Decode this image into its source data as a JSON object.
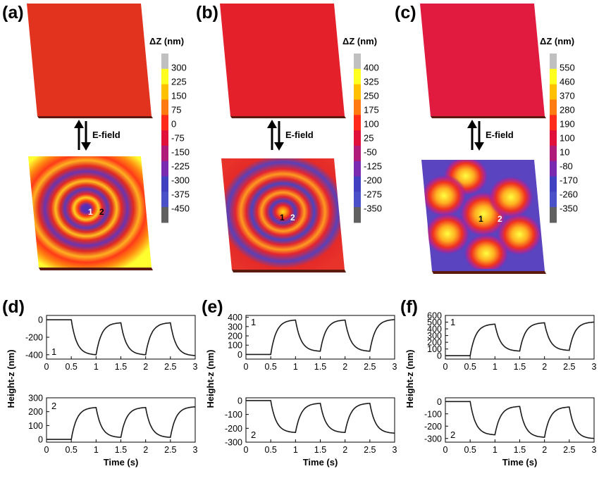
{
  "panels": {
    "a": {
      "label": "(a)",
      "colorbar_title": "ΔZ (nm)",
      "colorbar_ticks": [
        "300",
        "225",
        "150",
        "75",
        "0",
        "-75",
        "-150",
        "-225",
        "-300",
        "-375",
        "-450"
      ],
      "field_label": "E-field",
      "markers": [
        "1",
        "2"
      ],
      "pattern": "concentric-rings",
      "top_color": "#e2331f"
    },
    "b": {
      "label": "(b)",
      "colorbar_title": "ΔZ (nm)",
      "colorbar_ticks": [
        "400",
        "325",
        "250",
        "175",
        "100",
        "25",
        "-50",
        "-125",
        "-200",
        "-275",
        "-350"
      ],
      "field_label": "E-field",
      "markers": [
        "1",
        "2"
      ],
      "pattern": "concentric-rings",
      "top_color": "#e4202b"
    },
    "c": {
      "label": "(c)",
      "colorbar_title": "ΔZ (nm)",
      "colorbar_ticks": [
        "550",
        "460",
        "370",
        "280",
        "190",
        "100",
        "10",
        "-80",
        "-170",
        "-260",
        "-350"
      ],
      "field_label": "E-field",
      "markers": [
        "1",
        "2"
      ],
      "pattern": "hexagonal-spots",
      "top_color": "#e11b40"
    },
    "d": {
      "label": "(d)"
    },
    "e": {
      "label": "(e)"
    },
    "f": {
      "label": "(f)"
    }
  },
  "axes": {
    "ylabel": "Height-z (nm)",
    "xlabel": "Time (s)"
  },
  "colorbar_colors": [
    "#c0c0c0",
    "#ffff20",
    "#ffc000",
    "#ff7a10",
    "#ff2a1a",
    "#e0103a",
    "#b01a78",
    "#7a2ab0",
    "#4040c0",
    "#4a50c8",
    "#606060"
  ],
  "chart_data": [
    {
      "type": "line",
      "panel": "d",
      "series_label": "1",
      "x": [
        0,
        0.5,
        0.75,
        1,
        1.25,
        1.5,
        1.75,
        2,
        2.25,
        2.5,
        2.75,
        3
      ],
      "y": [
        0,
        0,
        -330,
        -400,
        -80,
        -35,
        -330,
        -400,
        -80,
        -35,
        -330,
        -410
      ],
      "xlim": [
        0,
        3
      ],
      "ylim": [
        -450,
        50
      ],
      "xticks": [
        "0",
        "0.5",
        "1",
        "1.5",
        "2",
        "2.5",
        "3"
      ],
      "yticks": [
        "0",
        "-200",
        "-400"
      ],
      "ytick_values": [
        0,
        -200,
        -400
      ]
    },
    {
      "type": "line",
      "panel": "d",
      "series_label": "2",
      "x": [
        0,
        0.5,
        0.75,
        1,
        1.25,
        1.5,
        1.75,
        2,
        2.25,
        2.5,
        2.75,
        3
      ],
      "y": [
        0,
        0,
        190,
        230,
        50,
        15,
        190,
        230,
        50,
        15,
        190,
        235
      ],
      "xlim": [
        0,
        3
      ],
      "ylim": [
        -20,
        300
      ],
      "xticks": [
        "0",
        "0.5",
        "1",
        "1.5",
        "2",
        "2.5",
        "3"
      ],
      "yticks": [
        "0",
        "100",
        "200",
        "300"
      ],
      "ytick_values": [
        0,
        100,
        200,
        300
      ]
    },
    {
      "type": "line",
      "panel": "e",
      "series_label": "1",
      "x": [
        0,
        0.5,
        0.75,
        1,
        1.25,
        1.5,
        1.75,
        2,
        2.25,
        2.5,
        2.75,
        3
      ],
      "y": [
        0,
        0,
        310,
        370,
        90,
        35,
        310,
        370,
        90,
        35,
        310,
        375
      ],
      "xlim": [
        0,
        3
      ],
      "ylim": [
        -50,
        420
      ],
      "xticks": [
        "0",
        "0.5",
        "1",
        "1.5",
        "2",
        "2.5",
        "3"
      ],
      "yticks": [
        "0",
        "100",
        "200",
        "300",
        "400"
      ],
      "ytick_values": [
        0,
        100,
        200,
        300,
        400
      ]
    },
    {
      "type": "line",
      "panel": "e",
      "series_label": "2",
      "x": [
        0,
        0.5,
        0.75,
        1,
        1.25,
        1.5,
        1.75,
        2,
        2.25,
        2.5,
        2.75,
        3
      ],
      "y": [
        0,
        0,
        -190,
        -230,
        -55,
        -20,
        -190,
        -230,
        -55,
        -20,
        -190,
        -235
      ],
      "xlim": [
        0,
        3
      ],
      "ylim": [
        -300,
        20
      ],
      "xticks": [
        "0",
        "0.5",
        "1",
        "1.5",
        "2",
        "2.5",
        "3"
      ],
      "yticks": [
        "0",
        "-100",
        "-200",
        "-300"
      ],
      "ytick_values": [
        0,
        -100,
        -200,
        -300
      ]
    },
    {
      "type": "line",
      "panel": "f",
      "series_label": "1",
      "x": [
        0,
        0.5,
        0.75,
        1,
        1.25,
        1.5,
        1.75,
        2,
        2.25,
        2.5,
        2.75,
        3
      ],
      "y": [
        0,
        0,
        380,
        470,
        140,
        70,
        400,
        490,
        150,
        80,
        410,
        500
      ],
      "xlim": [
        0,
        3
      ],
      "ylim": [
        -50,
        600
      ],
      "xticks": [
        "0",
        "0.5",
        "1",
        "1.5",
        "2",
        "2.5",
        "3"
      ],
      "yticks": [
        "0",
        "100",
        "200",
        "300",
        "400",
        "500",
        "600"
      ],
      "ytick_values": [
        0,
        100,
        200,
        300,
        400,
        500,
        600
      ]
    },
    {
      "type": "line",
      "panel": "f",
      "series_label": "2",
      "x": [
        0,
        0.5,
        0.75,
        1,
        1.25,
        1.5,
        1.75,
        2,
        2.25,
        2.5,
        2.75,
        3
      ],
      "y": [
        0,
        0,
        -210,
        -270,
        -70,
        -40,
        -230,
        -290,
        -80,
        -45,
        -240,
        -300
      ],
      "xlim": [
        0,
        3
      ],
      "ylim": [
        -330,
        30
      ],
      "xticks": [
        "0",
        "0.5",
        "1",
        "1.5",
        "2",
        "2.5",
        "3"
      ],
      "yticks": [
        "0",
        "-100",
        "-200",
        "-300"
      ],
      "ytick_values": [
        0,
        -100,
        -200,
        -300
      ]
    }
  ]
}
